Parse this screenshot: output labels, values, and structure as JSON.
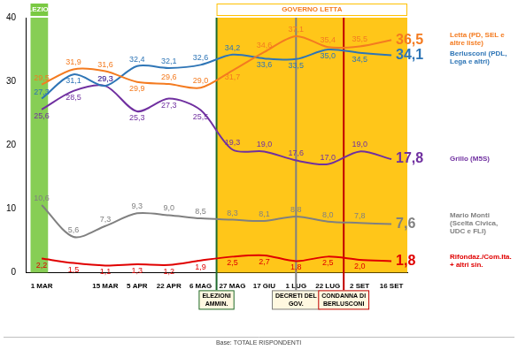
{
  "chart_data": {
    "type": "line",
    "categories": [
      "1 MAR",
      null,
      "15 MAR",
      "5 APR",
      "22 APR",
      "6 MAG",
      "27 MAG",
      "17 GIU",
      "1 LUG",
      "22 LUG",
      "2 SET",
      "16 SET"
    ],
    "series": [
      {
        "name": "Letta (PD, SEL e altre liste)",
        "color": "#f47b20",
        "values": [
          29.5,
          31.9,
          31.6,
          29.9,
          29.6,
          29.0,
          31.7,
          34.6,
          37.1,
          35.4,
          35.5,
          36.5
        ],
        "value_labels": [
          "29,5",
          "31,9",
          "31,6",
          "29,9",
          "29,6",
          "29,0",
          "31,7",
          "34,6",
          "37,1",
          "35,4",
          "35,5",
          "36,5"
        ]
      },
      {
        "name": "Berlusconi (PDL, Lega e altri)",
        "color": "#2e75b6",
        "values": [
          27.3,
          31.1,
          29.3,
          32.4,
          32.1,
          32.6,
          34.2,
          33.6,
          33.5,
          35.0,
          34.5,
          34.1
        ],
        "value_labels": [
          "27,3",
          "31,1",
          "29,3",
          "32,4",
          "32,1",
          "32,6",
          "34,2",
          "33,6",
          "33,5",
          "35,0",
          "34,5",
          "34,1"
        ]
      },
      {
        "name": "Grillo (M5S)",
        "color": "#7030a0",
        "values": [
          25.6,
          28.5,
          29.3,
          25.3,
          27.3,
          25.5,
          19.3,
          19.0,
          17.6,
          17.0,
          19.0,
          17.8
        ],
        "value_labels": [
          "25,6",
          "28,5",
          "29,3",
          "25,3",
          "27,3",
          "25,5",
          "19,3",
          "19,0",
          "17,6",
          "17,0",
          "19,0",
          "17,8"
        ]
      },
      {
        "name": "Mario Monti (Scelta Civica, UDC e FLI)",
        "color": "#808080",
        "values": [
          10.6,
          5.6,
          7.3,
          9.3,
          9.0,
          8.5,
          8.3,
          8.1,
          8.8,
          8.0,
          7.8,
          7.6
        ],
        "value_labels": [
          "10,6",
          "5,6",
          "7,3",
          "9,3",
          "9,0",
          "8,5",
          "8,3",
          "8,1",
          "8,8",
          "8,0",
          "7,8",
          "7,6"
        ]
      },
      {
        "name": "Rifondaz./Com.Ita. + altri sin.",
        "color": "#e00000",
        "values": [
          2.2,
          1.5,
          1.1,
          1.3,
          1.2,
          1.9,
          2.5,
          2.7,
          1.8,
          2.5,
          2.0,
          1.8
        ],
        "value_labels": [
          "2,2",
          "1,5",
          "1,1",
          "1,3",
          "1,2",
          "1,9",
          "2,5",
          "2,7",
          "1,8",
          "2,5",
          "2,0",
          "1,8"
        ]
      }
    ],
    "ylim": [
      0,
      40
    ],
    "yticks": [
      0,
      10,
      20,
      30,
      40
    ],
    "grid": false,
    "data_labels": true,
    "bands": [
      {
        "label": "ELEZIONI",
        "from": "1 MAR",
        "to": "1 MAR",
        "color": "#7ac943"
      },
      {
        "label": "GOVERNO LETTA",
        "from": "27 MAG",
        "to": "16 SET",
        "color": "#ffc000"
      }
    ],
    "events": [
      {
        "label": "ELEZIONI AMMIN.",
        "x": [
          "6 MAG",
          "27 MAG"
        ],
        "color": "#1e6b2e"
      },
      {
        "label": "DECRETI DEL GOV.",
        "x": "1 LUG",
        "color": "#808080"
      },
      {
        "label": "CONDANNA DI BERLUSCONI",
        "x": [
          "22 LUG",
          "2 SET"
        ],
        "color": "#c00000"
      }
    ],
    "footnote": "Base: TOTALE RISPONDENTI"
  }
}
